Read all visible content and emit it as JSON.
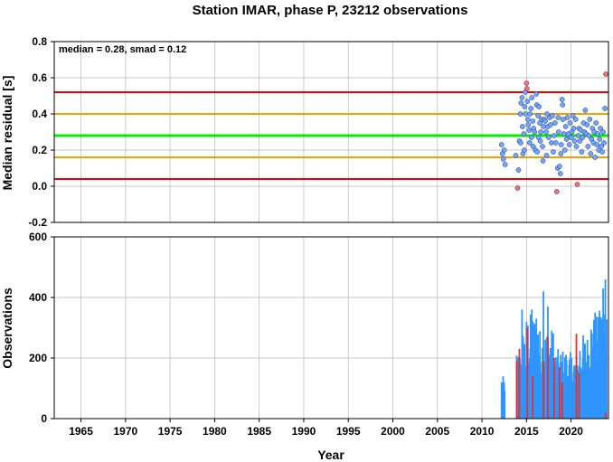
{
  "figure": {
    "title": "Station IMAR, phase P, 23212 observations",
    "xlabel": "Year",
    "annotation": "median = 0.28, smad = 0.12",
    "colors": {
      "median_line": "#00ee00",
      "smad_line": "#f0a000",
      "limit_line": "#ee0000",
      "point_fill": "#6ea6ff",
      "outlier_fill": "#ff6b6b",
      "bar": "#2f95ff",
      "bar_outlier": "#e03030",
      "grid": "#b8b8b8"
    }
  },
  "chart_data": [
    {
      "type": "scatter",
      "ylabel": "Median residual [s]",
      "xlim": [
        1962,
        2024.2
      ],
      "ylim": [
        -0.2,
        0.8
      ],
      "x_ticks": [
        1965,
        1970,
        1975,
        1980,
        1985,
        1990,
        1995,
        2000,
        2005,
        2010,
        2015,
        2020
      ],
      "y_ticks": [
        -0.2,
        0.0,
        0.2,
        0.4,
        0.6,
        0.8
      ],
      "y_tick_labels": [
        "-0.2",
        "0.0",
        "0.2",
        "0.4",
        "0.6",
        "0.8"
      ],
      "grid": true,
      "reference_lines": [
        {
          "y": 0.52,
          "role": "limit"
        },
        {
          "y": 0.4,
          "role": "smad"
        },
        {
          "y": 0.28,
          "role": "median"
        },
        {
          "y": 0.16,
          "role": "smad"
        },
        {
          "y": 0.04,
          "role": "limit"
        }
      ],
      "points": [
        [
          2012.2,
          0.23
        ],
        [
          2012.3,
          0.18
        ],
        [
          2012.4,
          0.15
        ],
        [
          2012.5,
          0.2
        ],
        [
          2012.6,
          0.12
        ],
        [
          2013.8,
          0.17
        ],
        [
          2014.0,
          -0.01
        ],
        [
          2014.1,
          0.09
        ],
        [
          2014.2,
          0.25
        ],
        [
          2014.3,
          0.4
        ],
        [
          2014.35,
          0.24
        ],
        [
          2014.4,
          0.46
        ],
        [
          2014.5,
          0.49
        ],
        [
          2014.55,
          0.33
        ],
        [
          2014.6,
          0.18
        ],
        [
          2014.7,
          0.29
        ],
        [
          2014.75,
          0.2
        ],
        [
          2014.8,
          0.44
        ],
        [
          2014.85,
          0.52
        ],
        [
          2014.9,
          0.4
        ],
        [
          2015.0,
          0.57
        ],
        [
          2015.05,
          0.54
        ],
        [
          2015.1,
          0.47
        ],
        [
          2015.15,
          0.37
        ],
        [
          2015.2,
          0.34
        ],
        [
          2015.3,
          0.31
        ],
        [
          2015.35,
          0.24
        ],
        [
          2015.4,
          0.4
        ],
        [
          2015.5,
          0.43
        ],
        [
          2015.55,
          0.27
        ],
        [
          2015.6,
          0.49
        ],
        [
          2015.7,
          0.36
        ],
        [
          2015.75,
          0.22
        ],
        [
          2015.8,
          0.32
        ],
        [
          2015.9,
          0.3
        ],
        [
          2016.0,
          0.2
        ],
        [
          2016.1,
          0.51
        ],
        [
          2016.15,
          0.45
        ],
        [
          2016.2,
          0.19
        ],
        [
          2016.3,
          0.39
        ],
        [
          2016.35,
          0.27
        ],
        [
          2016.4,
          0.44
        ],
        [
          2016.5,
          0.35
        ],
        [
          2016.55,
          0.25
        ],
        [
          2016.6,
          0.3
        ],
        [
          2016.7,
          0.37
        ],
        [
          2016.8,
          0.22
        ],
        [
          2016.85,
          0.14
        ],
        [
          2016.9,
          0.33
        ],
        [
          2017.0,
          0.37
        ],
        [
          2017.1,
          0.36
        ],
        [
          2017.2,
          0.3
        ],
        [
          2017.25,
          0.17
        ],
        [
          2017.3,
          0.4
        ],
        [
          2017.4,
          0.33
        ],
        [
          2017.5,
          0.27
        ],
        [
          2017.6,
          0.38
        ],
        [
          2017.7,
          0.34
        ],
        [
          2017.8,
          0.24
        ],
        [
          2017.9,
          0.39
        ],
        [
          2018.0,
          0.19
        ],
        [
          2018.1,
          0.28
        ],
        [
          2018.2,
          0.35
        ],
        [
          2018.3,
          0.24
        ],
        [
          2018.4,
          -0.03
        ],
        [
          2018.5,
          0.1
        ],
        [
          2018.55,
          0.38
        ],
        [
          2018.6,
          0.3
        ],
        [
          2018.7,
          0.11
        ],
        [
          2018.8,
          0.07
        ],
        [
          2018.85,
          0.18
        ],
        [
          2018.9,
          0.23
        ],
        [
          2019.0,
          0.48
        ],
        [
          2019.05,
          0.45
        ],
        [
          2019.1,
          0.37
        ],
        [
          2019.2,
          0.29
        ],
        [
          2019.3,
          0.2
        ],
        [
          2019.4,
          0.33
        ],
        [
          2019.5,
          0.26
        ],
        [
          2019.6,
          0.38
        ],
        [
          2019.7,
          0.29
        ],
        [
          2019.8,
          0.23
        ],
        [
          2019.9,
          0.35
        ],
        [
          2020.0,
          0.27
        ],
        [
          2020.1,
          0.3
        ],
        [
          2020.2,
          0.39
        ],
        [
          2020.3,
          0.32
        ],
        [
          2020.4,
          0.25
        ],
        [
          2020.5,
          0.37
        ],
        [
          2020.6,
          0.22
        ],
        [
          2020.7,
          0.01
        ],
        [
          2020.8,
          0.28
        ],
        [
          2020.9,
          0.32
        ],
        [
          2021.0,
          0.25
        ],
        [
          2021.1,
          0.31
        ],
        [
          2021.2,
          0.19
        ],
        [
          2021.3,
          0.27
        ],
        [
          2021.4,
          0.35
        ],
        [
          2021.5,
          0.3
        ],
        [
          2021.6,
          0.42
        ],
        [
          2021.7,
          0.29
        ],
        [
          2021.8,
          0.34
        ],
        [
          2021.9,
          0.22
        ],
        [
          2022.0,
          0.28
        ],
        [
          2022.1,
          0.37
        ],
        [
          2022.2,
          0.18
        ],
        [
          2022.3,
          0.26
        ],
        [
          2022.4,
          0.32
        ],
        [
          2022.5,
          0.24
        ],
        [
          2022.6,
          0.3
        ],
        [
          2022.7,
          0.16
        ],
        [
          2022.8,
          0.35
        ],
        [
          2022.9,
          0.23
        ],
        [
          2023.0,
          0.29
        ],
        [
          2023.1,
          0.2
        ],
        [
          2023.2,
          0.26
        ],
        [
          2023.3,
          0.32
        ],
        [
          2023.4,
          0.22
        ],
        [
          2023.5,
          0.19
        ],
        [
          2023.6,
          0.3
        ],
        [
          2023.7,
          0.24
        ],
        [
          2023.8,
          0.43
        ],
        [
          2023.9,
          0.62
        ]
      ]
    },
    {
      "type": "bar",
      "ylabel": "Observations",
      "xlim": [
        1962,
        2024.2
      ],
      "ylim": [
        0,
        600
      ],
      "x_ticks": [
        1965,
        1970,
        1975,
        1980,
        1985,
        1990,
        1995,
        2000,
        2005,
        2010,
        2015,
        2020
      ],
      "x_tick_labels": [
        "1965",
        "1970",
        "1975",
        "1980",
        "1985",
        "1990",
        "1995",
        "2000",
        "2005",
        "2010",
        "2015",
        "2020"
      ],
      "y_ticks": [
        0,
        200,
        400,
        600
      ],
      "y_tick_labels": [
        "0",
        "200",
        "400",
        "600"
      ],
      "grid": true,
      "segments": [
        {
          "start": 2012.2,
          "end": 2012.55,
          "count": 7,
          "base": 110,
          "spread": 30
        },
        {
          "start": 2013.9,
          "end": 2014.4,
          "count": 8,
          "base": 170,
          "spread": 50
        },
        {
          "start": 2014.4,
          "end": 2015.0,
          "count": 12,
          "base": 200,
          "spread": 100
        },
        {
          "start": 2015.0,
          "end": 2016.5,
          "count": 30,
          "base": 230,
          "spread": 120
        },
        {
          "start": 2016.5,
          "end": 2018.0,
          "count": 28,
          "base": 200,
          "spread": 100
        },
        {
          "start": 2018.0,
          "end": 2019.5,
          "count": 26,
          "base": 160,
          "spread": 70
        },
        {
          "start": 2019.5,
          "end": 2021.0,
          "count": 28,
          "base": 150,
          "spread": 70
        },
        {
          "start": 2021.0,
          "end": 2022.2,
          "count": 24,
          "base": 190,
          "spread": 90
        },
        {
          "start": 2022.2,
          "end": 2023.2,
          "count": 20,
          "base": 240,
          "spread": 100
        },
        {
          "start": 2023.2,
          "end": 2024.0,
          "count": 16,
          "base": 280,
          "spread": 120
        }
      ],
      "peaks": [
        [
          2014.5,
          360
        ],
        [
          2015.6,
          360
        ],
        [
          2016.1,
          330
        ],
        [
          2016.9,
          420
        ],
        [
          2017.4,
          370
        ],
        [
          2022.7,
          350
        ],
        [
          2023.6,
          430
        ],
        [
          2023.85,
          460
        ]
      ],
      "outlier_bars": [
        [
          2013.9,
          190
        ],
        [
          2014.2,
          230
        ],
        [
          2015.1,
          300
        ],
        [
          2015.7,
          140
        ],
        [
          2016.9,
          190
        ],
        [
          2017.4,
          270
        ],
        [
          2018.1,
          200
        ],
        [
          2018.7,
          170
        ],
        [
          2019.0,
          120
        ],
        [
          2020.6,
          280
        ],
        [
          2020.9,
          150
        ],
        [
          2023.9,
          20
        ]
      ]
    }
  ]
}
